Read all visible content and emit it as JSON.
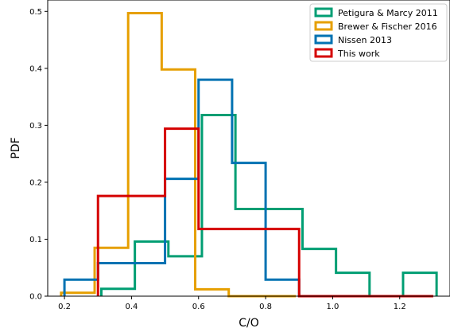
{
  "chart_data": {
    "type": "histogram",
    "xlabel": "C/O",
    "ylabel": "PDF",
    "xlim": [
      0.15,
      1.35
    ],
    "ylim": [
      0.0,
      0.52
    ],
    "xticks": [
      0.2,
      0.4,
      0.6,
      0.8,
      1.0,
      1.2
    ],
    "xtick_labels": [
      "0.2",
      "0.4",
      "0.6",
      "0.8",
      "1.0",
      "1.2"
    ],
    "yticks": [
      0.0,
      0.1,
      0.2,
      0.3,
      0.4,
      0.5
    ],
    "ytick_labels": [
      "0.0",
      "0.1",
      "0.2",
      "0.3",
      "0.4",
      "0.5"
    ],
    "grid": false,
    "legend_position": "top-right",
    "histtype": "step",
    "series": [
      {
        "name": "Petigura & Marcy 2011",
        "color": "#009e73",
        "bin_edges": [
          0.31,
          0.41,
          0.51,
          0.61,
          0.71,
          0.81,
          0.91,
          1.01,
          1.11,
          1.21,
          1.31
        ],
        "values": [
          0.013,
          0.096,
          0.07,
          0.318,
          0.153,
          0.153,
          0.083,
          0.041,
          0.0,
          0.041
        ]
      },
      {
        "name": "Brewer & Fischer 2016",
        "color": "#e69f00",
        "bin_edges": [
          0.19,
          0.29,
          0.39,
          0.49,
          0.59,
          0.69,
          0.79,
          0.89
        ],
        "values": [
          0.006,
          0.085,
          0.497,
          0.398,
          0.012,
          0.0,
          0.0
        ]
      },
      {
        "name": "Nissen 2013",
        "color": "#0072b2",
        "bin_edges": [
          0.2,
          0.3,
          0.4,
          0.5,
          0.6,
          0.7,
          0.8,
          0.9
        ],
        "values": [
          0.029,
          0.058,
          0.058,
          0.206,
          0.38,
          0.234,
          0.029
        ]
      },
      {
        "name": "This work",
        "color": "#d50000",
        "bin_edges": [
          0.3,
          0.4,
          0.5,
          0.6,
          0.7,
          0.8,
          0.9,
          1.0,
          1.1,
          1.2,
          1.3
        ],
        "values": [
          0.176,
          0.176,
          0.294,
          0.118,
          0.118,
          0.118,
          0.0,
          0.0,
          0.0,
          0.0
        ]
      }
    ]
  }
}
